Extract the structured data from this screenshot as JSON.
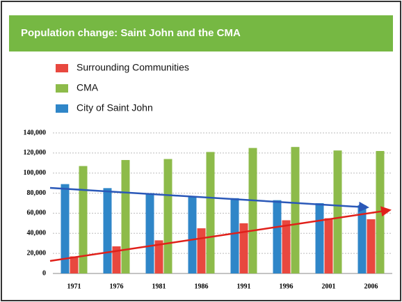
{
  "chart_data": {
    "type": "bar",
    "title": "Population change: Saint John and the CMA",
    "categories": [
      "1971",
      "1976",
      "1981",
      "1986",
      "1991",
      "1996",
      "2001",
      "2006"
    ],
    "series": [
      {
        "name": "Surrounding Communities",
        "color": "#e8483f",
        "values": [
          17000,
          27000,
          33000,
          45000,
          50000,
          53000,
          55000,
          54000
        ]
      },
      {
        "name": "CMA",
        "color": "#8dbb4a",
        "values": [
          107000,
          113000,
          114000,
          121000,
          125000,
          126000,
          122500,
          122000
        ]
      },
      {
        "name": "City of Saint John",
        "color": "#2f86c8",
        "values": [
          89000,
          85000,
          80000,
          76000,
          75000,
          73000,
          70000,
          68000
        ]
      }
    ],
    "ylim": [
      0,
      140000
    ],
    "yticks": [
      0,
      {
        "value": 20000,
        "label": "20,000"
      },
      {
        "value": 40000,
        "label": "40,000"
      },
      {
        "value": 60000,
        "label": "60,000"
      },
      {
        "value": 80000,
        "label": "80,000"
      },
      {
        "value": 100000,
        "label": "100,000"
      },
      {
        "value": 120000,
        "label": "120,000"
      },
      {
        "value": 140000,
        "label": "140,000"
      }
    ],
    "grid": true
  }
}
